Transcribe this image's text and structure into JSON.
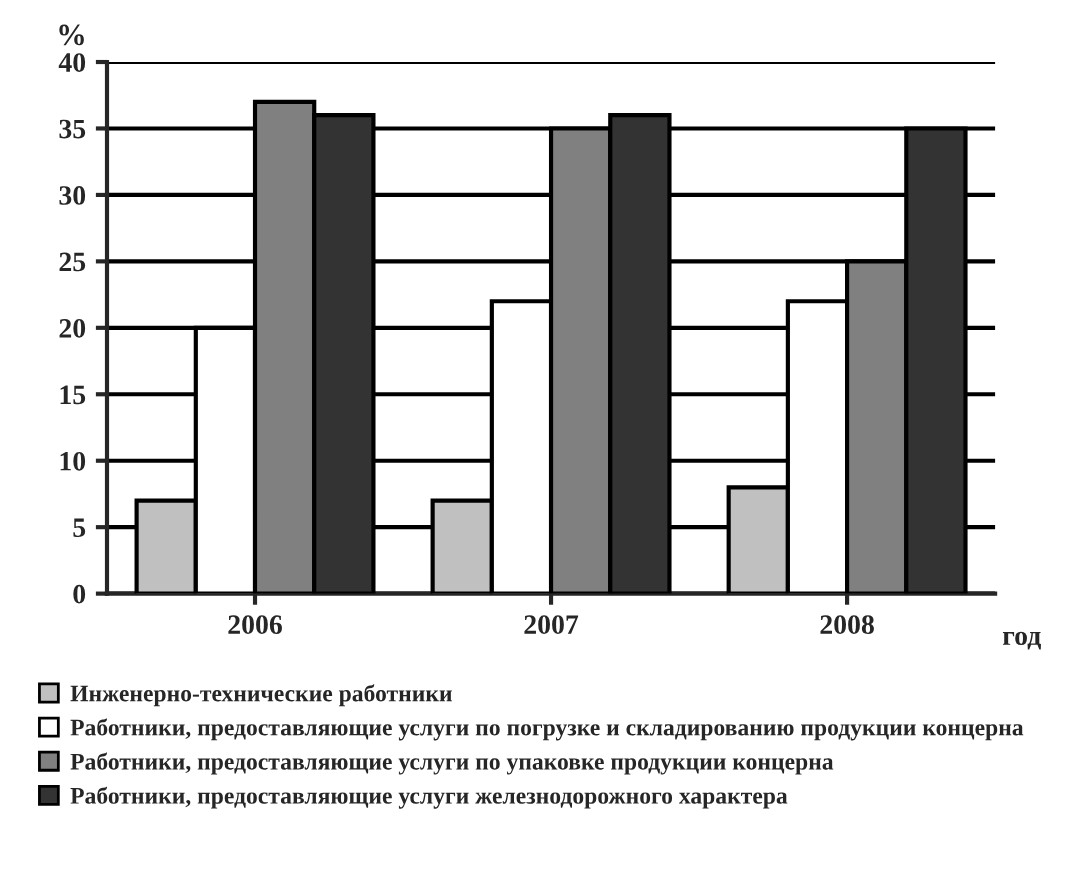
{
  "chart_data": {
    "type": "bar",
    "ylabel": "%",
    "xlabel": "год",
    "categories": [
      "2006",
      "2007",
      "2008"
    ],
    "series": [
      {
        "name": "Инженерно-технические работники",
        "color": "#c0c0c0",
        "values": [
          7,
          7,
          8
        ]
      },
      {
        "name": "Работники, предоставляющие услуги по погрузке и складированию продукции концерна",
        "color": "#ffffff",
        "values": [
          20,
          22,
          22
        ]
      },
      {
        "name": "Работники, предоставляющие услуги по упаковке продукции концерна",
        "color": "#808080",
        "values": [
          37,
          35,
          25
        ]
      },
      {
        "name": "Работники, предоставляющие услуги железнодорожного характера",
        "color": "#333333",
        "values": [
          36,
          36,
          35
        ]
      }
    ],
    "ylim": [
      0,
      40
    ],
    "yticks": [
      0,
      5,
      10,
      15,
      20,
      25,
      30,
      35,
      40
    ],
    "grid": "y",
    "legend": "bottom"
  }
}
